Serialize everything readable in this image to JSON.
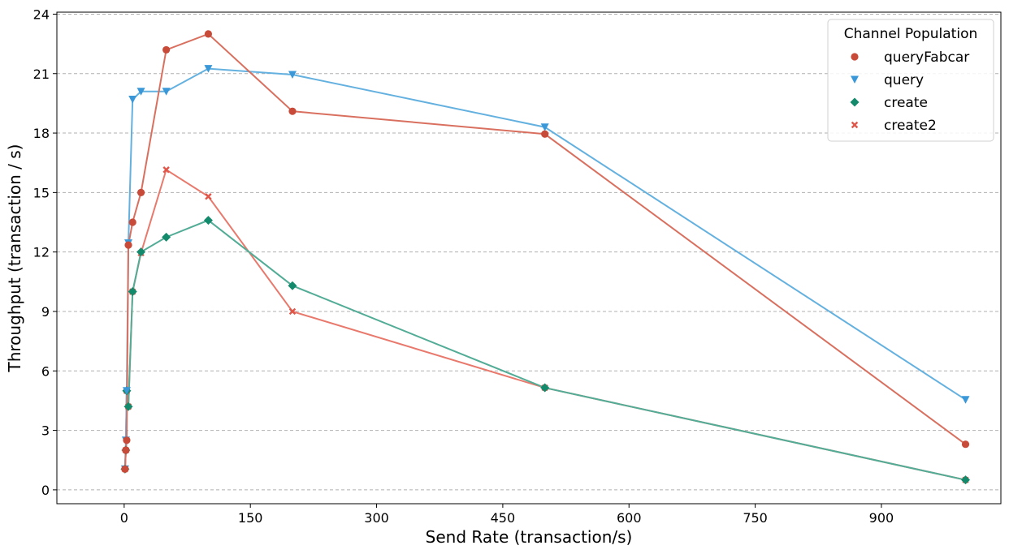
{
  "chart_data": {
    "type": "line",
    "title": "",
    "xlabel": "Send Rate (transaction/s)",
    "ylabel": "Throughput (transaction / s)",
    "xlim": [
      -80,
      1042
    ],
    "ylim": [
      -0.7,
      24.1
    ],
    "xticks": [
      0,
      150,
      300,
      450,
      600,
      750,
      900
    ],
    "yticks": [
      0,
      3,
      6,
      9,
      12,
      15,
      18,
      21,
      24
    ],
    "grid": "horizontal-dashed",
    "legend": {
      "title": "Channel Population",
      "placement": "top-right"
    },
    "series": [
      {
        "name": "queryFabcar",
        "marker": "circle",
        "color": "#d9705f",
        "marker_color": "#c84b3a",
        "x": [
          1,
          2,
          3,
          5,
          10,
          20,
          50,
          100,
          200,
          500,
          1000
        ],
        "y": [
          1.05,
          2.0,
          2.5,
          12.35,
          13.5,
          15.0,
          22.2,
          23.0,
          19.1,
          17.95,
          2.3
        ]
      },
      {
        "name": "query",
        "marker": "triangle-down",
        "color": "#64b1e0",
        "marker_color": "#3a98d9",
        "x": [
          1,
          2,
          3,
          5,
          10,
          20,
          50,
          100,
          200,
          500,
          1000
        ],
        "y": [
          1.05,
          2.5,
          5.0,
          12.45,
          19.7,
          20.1,
          20.1,
          21.25,
          20.95,
          18.3,
          4.55
        ]
      },
      {
        "name": "create",
        "marker": "diamond",
        "color": "#52ac96",
        "marker_color": "#148a6c",
        "x": [
          1,
          2,
          3,
          5,
          10,
          20,
          50,
          100,
          200,
          500,
          1000
        ],
        "y": [
          1.05,
          2.0,
          5.0,
          4.2,
          10.0,
          12.0,
          12.75,
          13.6,
          10.3,
          5.15,
          0.5
        ]
      },
      {
        "name": "create2",
        "marker": "x",
        "color": "#e8796c",
        "marker_color": "#e0574a",
        "x": [
          1,
          2,
          3,
          5,
          10,
          20,
          50,
          100,
          200,
          500,
          1000
        ],
        "y": [
          1.05,
          2.0,
          5.0,
          4.2,
          10.0,
          11.95,
          16.15,
          14.8,
          9.0,
          5.15,
          0.5
        ]
      }
    ]
  }
}
